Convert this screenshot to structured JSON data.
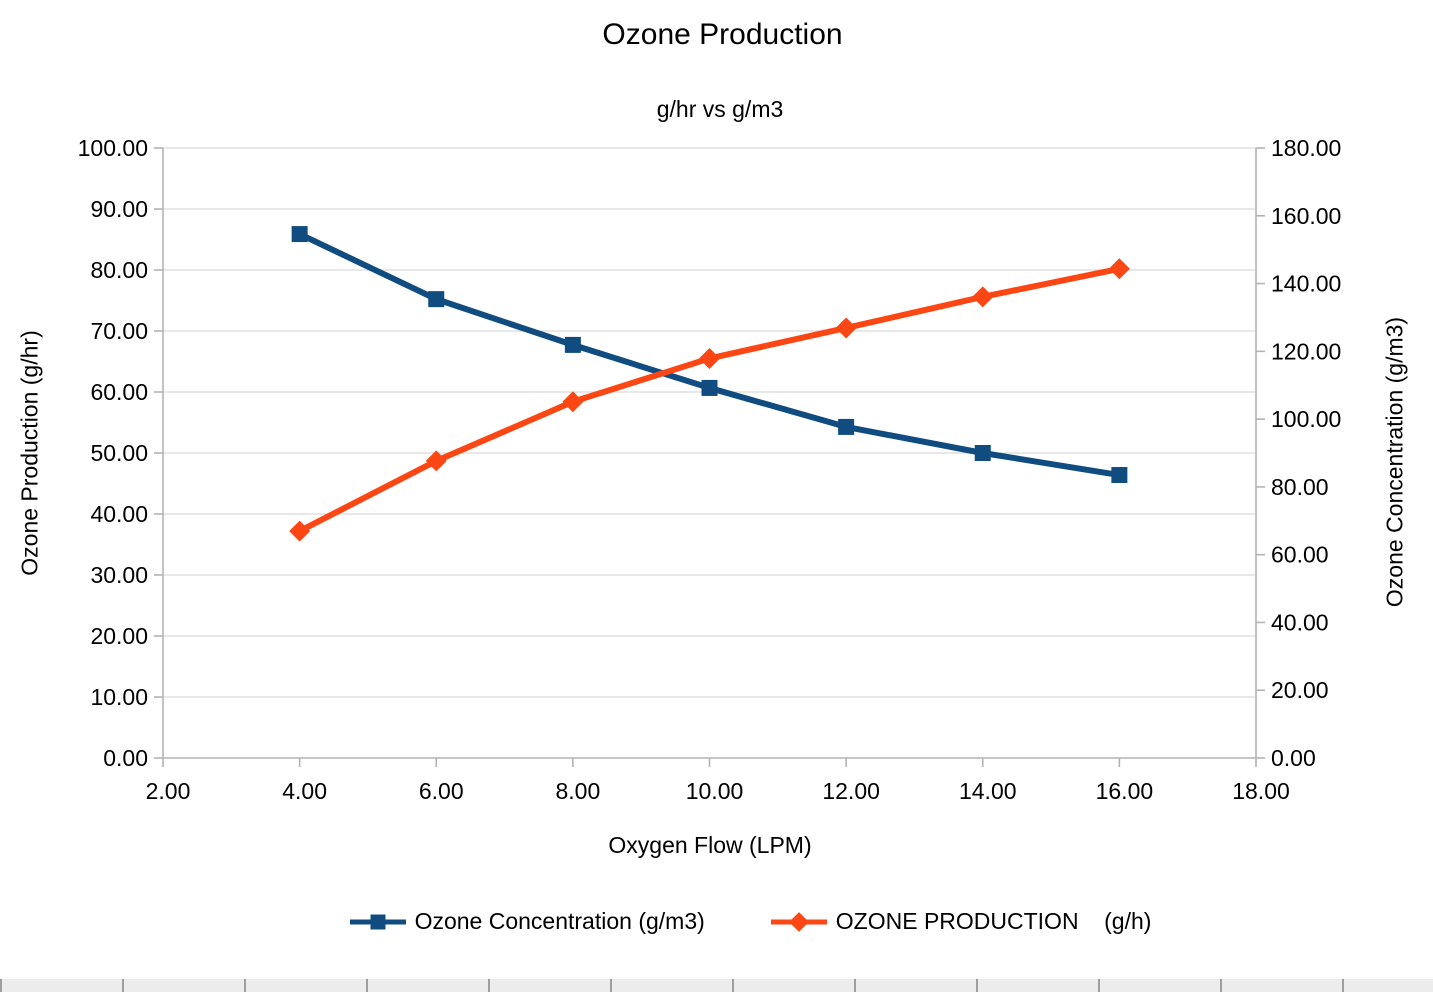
{
  "chart_data": {
    "type": "line",
    "title": "Ozone Production",
    "subtitle": "g/hr vs g/m3",
    "x": [
      4,
      6,
      8,
      10,
      12,
      14,
      16
    ],
    "series": [
      {
        "name": "Ozone Concentration (g/m3)",
        "axis": "right",
        "color": "#114C81",
        "marker": "square",
        "values": [
          154.6,
          135.4,
          121.9,
          109.2,
          97.7,
          90.0,
          83.5
        ]
      },
      {
        "name": "OZONE PRODUCTION    (g/h)",
        "axis": "left",
        "color": "#FC4714",
        "marker": "diamond",
        "values": [
          37.2,
          48.7,
          58.4,
          65.5,
          70.5,
          75.6,
          80.2
        ]
      }
    ],
    "x_axis": {
      "label": "Oxygen Flow (LPM)",
      "min": 2,
      "max": 18,
      "step": 2,
      "tick_labels": [
        "2.00",
        "4.00",
        "6.00",
        "8.00",
        "10.00",
        "12.00",
        "14.00",
        "16.00",
        "18.00"
      ]
    },
    "y_left": {
      "label": "Ozone Production (g/hr)",
      "min": 0,
      "max": 100,
      "step": 10,
      "tick_labels": [
        "0.00",
        "10.00",
        "20.00",
        "30.00",
        "40.00",
        "50.00",
        "60.00",
        "70.00",
        "80.00",
        "90.00",
        "100.00"
      ]
    },
    "y_right": {
      "label": "Ozone Concentration (g/m3)",
      "min": 0,
      "max": 180,
      "step": 20,
      "tick_labels": [
        "0.00",
        "20.00",
        "40.00",
        "60.00",
        "80.00",
        "100.00",
        "120.00",
        "140.00",
        "160.00",
        "180.00"
      ]
    },
    "grid": "horizontal",
    "legend_position": "bottom",
    "colors": {
      "gridline": "#d9d9d9",
      "axis": "#b3b3b3",
      "text": "#000000",
      "background": "#ffffff"
    }
  }
}
